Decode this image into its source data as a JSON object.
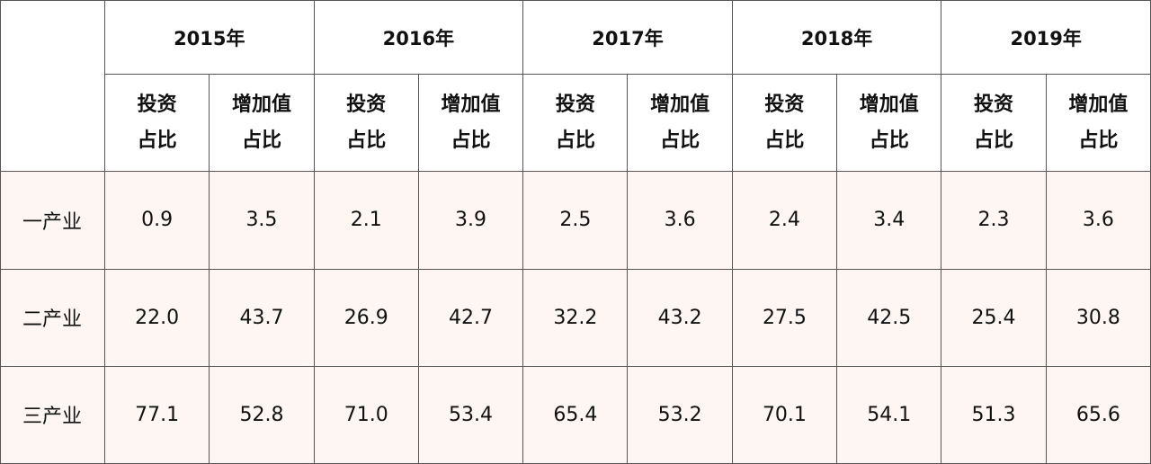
{
  "table": {
    "years": [
      "2015年",
      "2016年",
      "2017年",
      "2018年",
      "2019年"
    ],
    "sub_headers": [
      [
        [
          "投资",
          "占比"
        ],
        [
          "增加值",
          "占比"
        ]
      ],
      [
        [
          "投资",
          "占比"
        ],
        [
          "增加值",
          "占比"
        ]
      ],
      [
        [
          "投资",
          "占比"
        ],
        [
          "增加值",
          "占比"
        ]
      ],
      [
        [
          "投资",
          "占比"
        ],
        [
          "增加值",
          "占比"
        ]
      ],
      [
        [
          "投资",
          "占比"
        ],
        [
          "增加值",
          "占比"
        ]
      ]
    ],
    "rows": [
      {
        "label": "一产业",
        "cells": [
          "0.9",
          "3.5",
          "2.1",
          "3.9",
          "2.5",
          "3.6",
          "2.4",
          "3.4",
          "2.3",
          "3.6"
        ]
      },
      {
        "label": "二产业",
        "cells": [
          "22.0",
          "43.7",
          "26.9",
          "42.7",
          "32.2",
          "43.2",
          "27.5",
          "42.5",
          "25.4",
          "30.8"
        ]
      },
      {
        "label": "三产业",
        "cells": [
          "77.1",
          "52.8",
          "71.0",
          "53.4",
          "65.4",
          "53.2",
          "70.1",
          "54.1",
          "51.3",
          "65.6"
        ]
      }
    ]
  }
}
